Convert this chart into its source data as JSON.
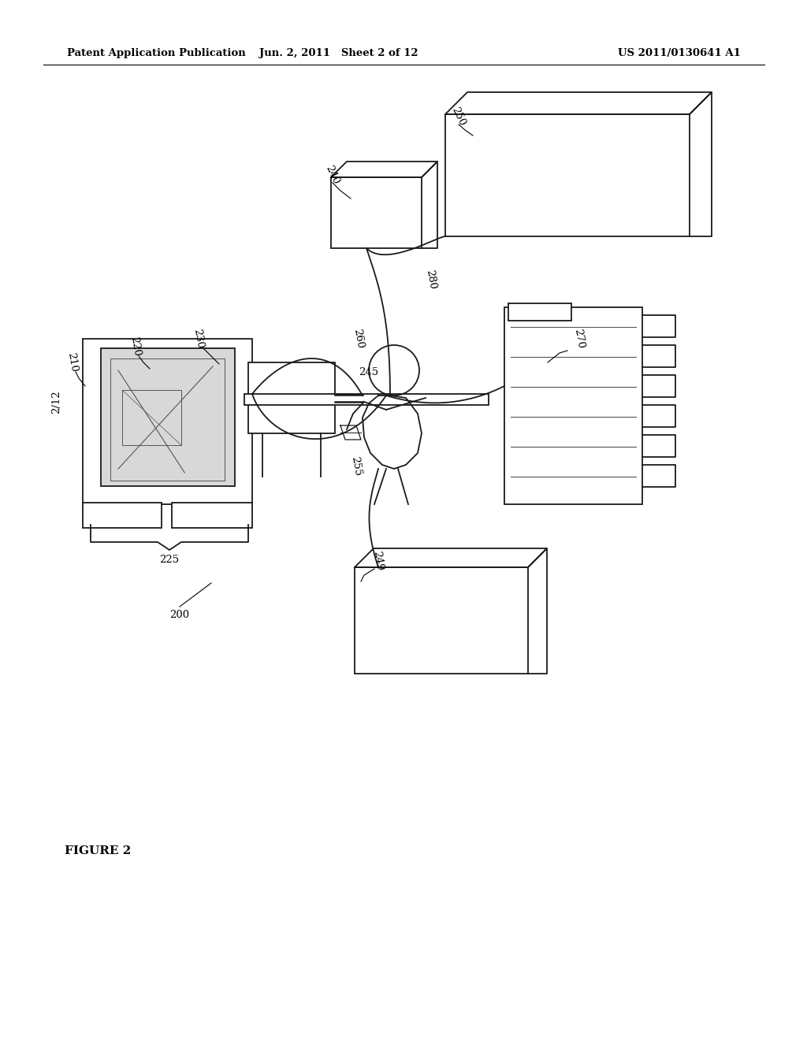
{
  "bg_color": "#ffffff",
  "header_left": "Patent Application Publication",
  "header_center": "Jun. 2, 2011   Sheet 2 of 12",
  "header_right": "US 2011/0130641 A1",
  "sheet_label": "2/12",
  "figure_label": "FIGURE 2",
  "line_color": "#1a1a1a",
  "gray_color": "#555555"
}
